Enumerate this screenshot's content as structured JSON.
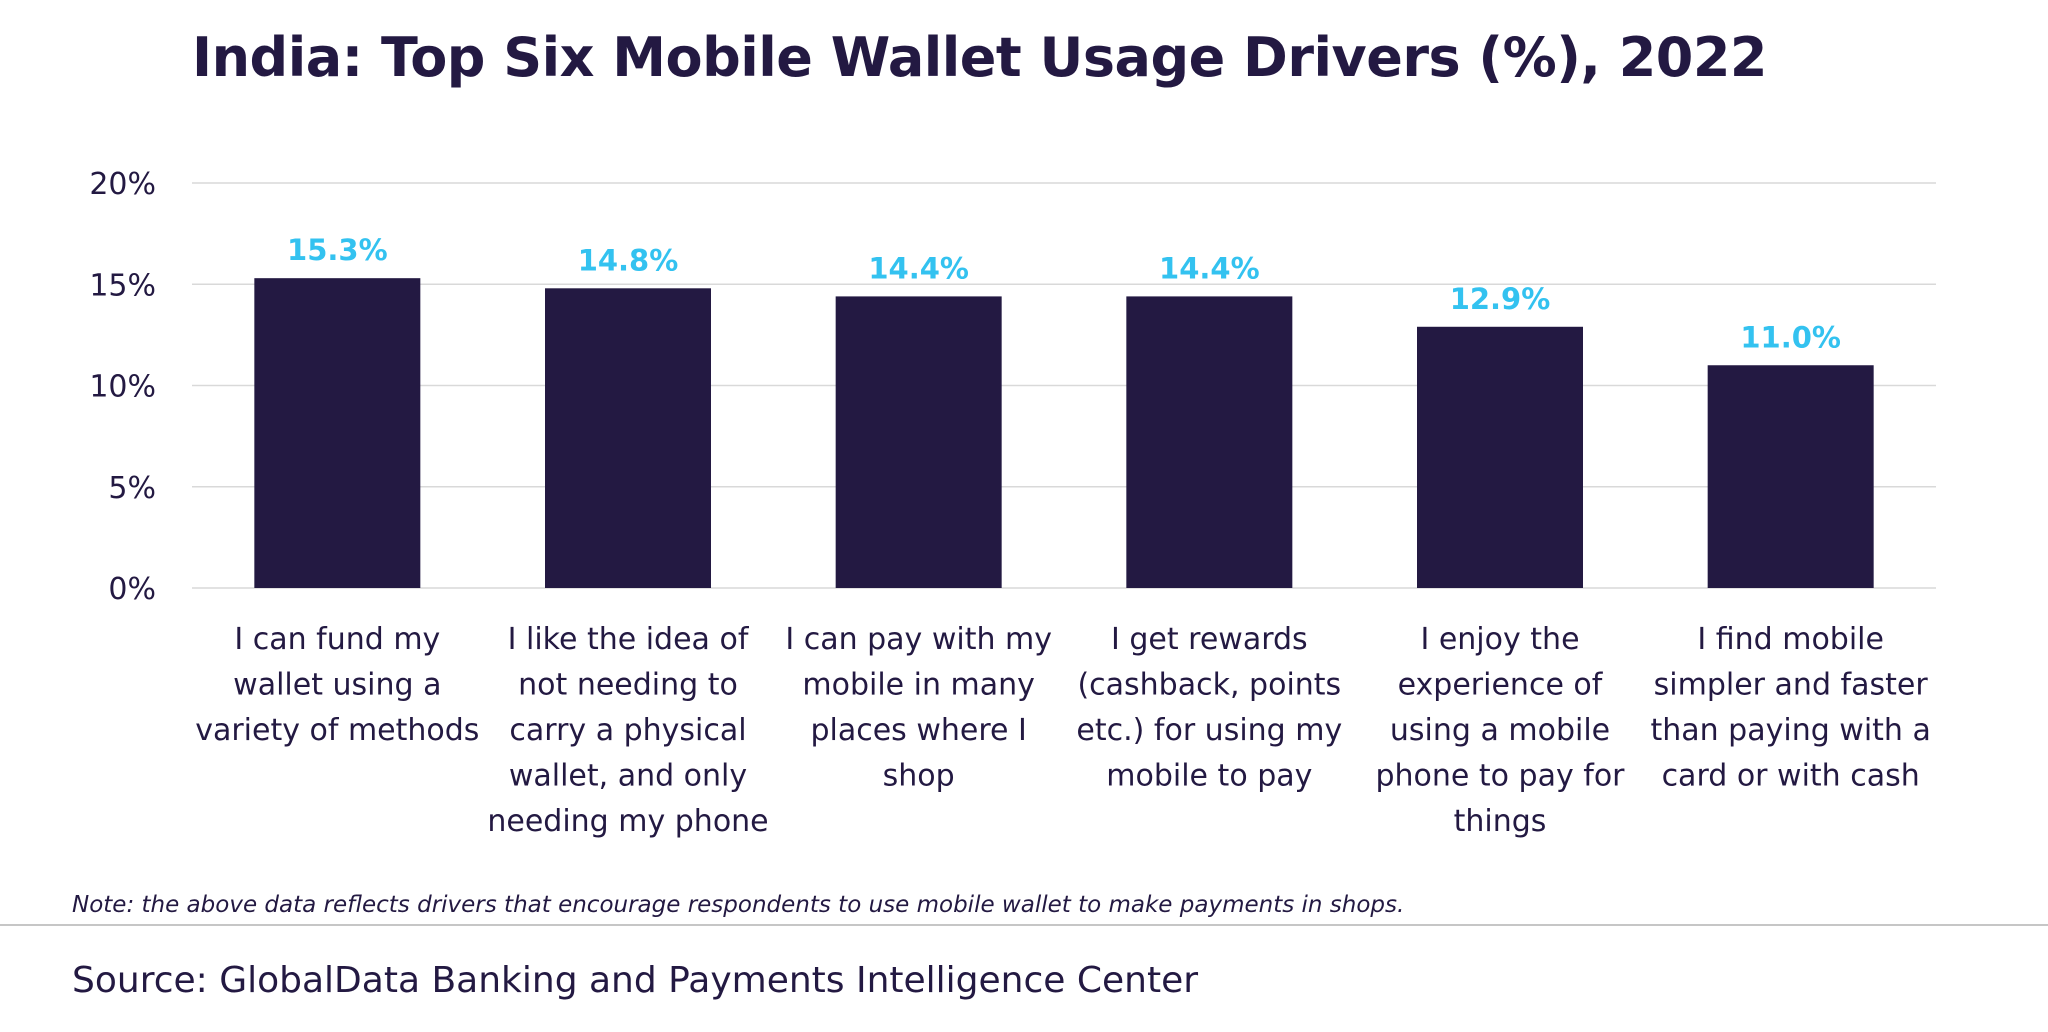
{
  "chart_data": {
    "type": "bar",
    "title": "India: Top Six Mobile Wallet Usage Drivers (%), 2022",
    "categories": [
      [
        "I can fund my",
        "wallet using a",
        "variety of methods"
      ],
      [
        "I like the idea of",
        "not needing to",
        "carry a physical",
        "wallet, and only",
        "needing my phone"
      ],
      [
        "I can pay with my",
        "mobile in many",
        "places where I",
        "shop"
      ],
      [
        "I get rewards",
        "(cashback, points",
        "etc.) for using my",
        "mobile to pay"
      ],
      [
        "I enjoy the",
        "experience of",
        "using a mobile",
        "phone to pay for",
        "things"
      ],
      [
        "I find mobile",
        "simpler and faster",
        "than paying with a",
        "card or with cash"
      ]
    ],
    "values": [
      15.3,
      14.8,
      14.4,
      14.4,
      12.9,
      11.0
    ],
    "data_labels": [
      "15.3%",
      "14.8%",
      "14.4%",
      "14.4%",
      "12.9%",
      "11.0%"
    ],
    "yticks": [
      0,
      5,
      10,
      15,
      20
    ],
    "ytick_labels": [
      "0%",
      "5%",
      "10%",
      "15%",
      "20%"
    ],
    "ylim": [
      0,
      20
    ],
    "grid": true,
    "bar_color": "#231942",
    "label_color": "#33c2f0",
    "grid_color": "#d9d9d9"
  },
  "note": "Note: the above data reflects drivers that encourage respondents to use mobile wallet to make payments in shops.",
  "source": "Source: GlobalData Banking and Payments Intelligence Center"
}
